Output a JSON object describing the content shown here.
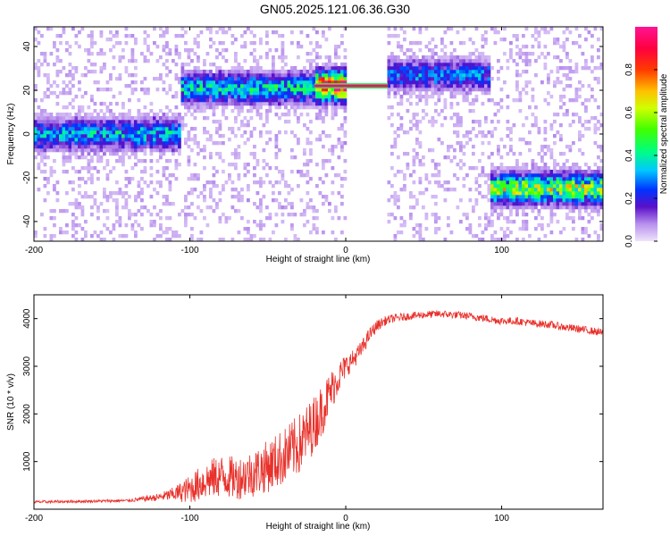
{
  "figure_title": "GN05.2025.121.06.36.G30",
  "chart_data": [
    {
      "type": "heatmap",
      "xlabel": "Height of straight line (km)",
      "ylabel": "Frequency (Hz)",
      "xlim": [
        -200,
        165
      ],
      "ylim": [
        -49,
        49
      ],
      "xticks": [
        -200,
        -100,
        0,
        100
      ],
      "xtick_labels": [
        "-200",
        "-100",
        "0",
        "100"
      ],
      "yticks": [
        -40,
        -20,
        0,
        20,
        40
      ],
      "ytick_labels": [
        "-40",
        "-20",
        "0",
        "20",
        "40"
      ],
      "colorbar": {
        "label": "Normalized spectral amplitude",
        "range": [
          0,
          1
        ],
        "ticks": [
          0,
          0.2,
          0.4,
          0.6,
          0.8
        ],
        "tick_labels": [
          "0.0",
          "0.2",
          "0.4",
          "0.6",
          "0.8"
        ]
      },
      "ridge": [
        {
          "x_start": -200,
          "x_end": -105,
          "frequency": 0,
          "amplitude": 0.3
        },
        {
          "x_start": -105,
          "x_end": -20,
          "frequency": 21,
          "amplitude": 0.35
        },
        {
          "x_start": -20,
          "x_end": 27,
          "frequency": 22,
          "amplitude": 0.9
        },
        {
          "x_start": 27,
          "x_end": 93,
          "frequency": 27,
          "amplitude": 0.25
        },
        {
          "x_start": 93,
          "x_end": 165,
          "frequency": -25,
          "amplitude": 0.55
        }
      ],
      "blank_gap": [
        0,
        27
      ],
      "grid": false,
      "legend": "none"
    },
    {
      "type": "line",
      "xlabel": "Height of straight line (km)",
      "ylabel": "SNR (10 * v/v)",
      "xlim": [
        -200,
        165
      ],
      "ylim": [
        0,
        4500
      ],
      "xticks": [
        -200,
        -100,
        0,
        100
      ],
      "xtick_labels": [
        "-200",
        "-100",
        "0",
        "100"
      ],
      "yticks": [
        1000,
        2000,
        3000,
        4000
      ],
      "ytick_labels": [
        "1000",
        "2000",
        "3000",
        "4000"
      ],
      "series": [
        {
          "color": "#e8312b",
          "x": [
            -200,
            -180,
            -160,
            -140,
            -120,
            -110,
            -100,
            -90,
            -80,
            -70,
            -60,
            -50,
            -40,
            -30,
            -20,
            -15,
            -10,
            -5,
            0,
            5,
            10,
            15,
            20,
            25,
            30,
            40,
            50,
            60,
            70,
            80,
            90,
            100,
            110,
            120,
            130,
            140,
            150,
            160,
            165
          ],
          "y": [
            150,
            160,
            170,
            180,
            250,
            320,
            420,
            600,
            700,
            650,
            750,
            900,
            1100,
            1350,
            1800,
            2100,
            2450,
            2750,
            3000,
            3150,
            3350,
            3650,
            3850,
            3950,
            4000,
            4050,
            4080,
            4100,
            4080,
            4050,
            4000,
            3950,
            3950,
            3900,
            3880,
            3820,
            3780,
            3730,
            3700
          ],
          "noise": [
            30,
            30,
            30,
            30,
            80,
            150,
            300,
            400,
            450,
            450,
            500,
            550,
            600,
            650,
            600,
            550,
            450,
            350,
            250,
            200,
            180,
            150,
            120,
            100,
            90,
            80,
            80,
            80,
            80,
            80,
            80,
            80,
            80,
            80,
            80,
            80,
            80,
            80,
            80
          ]
        }
      ],
      "grid": false,
      "legend": "none"
    }
  ]
}
